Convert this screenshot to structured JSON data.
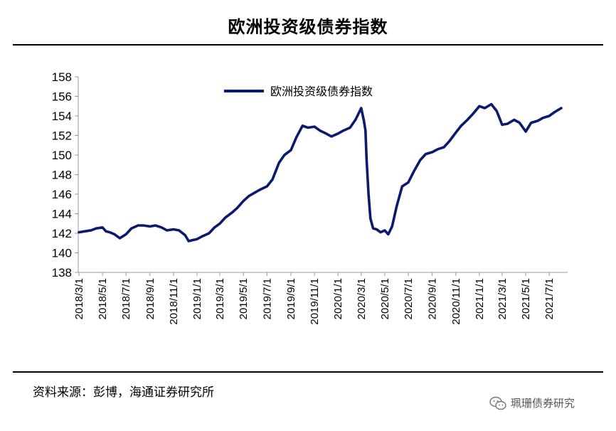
{
  "chart_data": {
    "type": "line",
    "title": "欧洲投资级债券指数",
    "xlabel": "",
    "ylabel": "",
    "ylim": [
      138,
      158
    ],
    "yticks": [
      138,
      140,
      142,
      144,
      146,
      148,
      150,
      152,
      154,
      156,
      158
    ],
    "grid": false,
    "legend_position": "top-center",
    "x_tick_labels": [
      "2018/3/1",
      "2018/5/1",
      "2018/7/1",
      "2018/9/1",
      "2018/11/1",
      "2019/1/1",
      "2019/3/1",
      "2019/5/1",
      "2019/7/1",
      "2019/9/1",
      "2019/11/1",
      "2020/1/1",
      "2020/3/1",
      "2020/5/1",
      "2020/7/1",
      "2020/9/1",
      "2020/11/1",
      "2021/1/1",
      "2021/3/1",
      "2021/5/1",
      "2021/7/1"
    ],
    "series": [
      {
        "name": "欧洲投资级债券指数",
        "color": "#0a1a6e",
        "points": [
          [
            "2018-03-01",
            142.1
          ],
          [
            "2018-03-15",
            142.2
          ],
          [
            "2018-04-01",
            142.3
          ],
          [
            "2018-04-15",
            142.5
          ],
          [
            "2018-05-01",
            142.6
          ],
          [
            "2018-05-10",
            142.2
          ],
          [
            "2018-05-20",
            142.1
          ],
          [
            "2018-06-01",
            141.9
          ],
          [
            "2018-06-15",
            141.5
          ],
          [
            "2018-07-01",
            141.9
          ],
          [
            "2018-07-15",
            142.5
          ],
          [
            "2018-08-01",
            142.8
          ],
          [
            "2018-08-15",
            142.8
          ],
          [
            "2018-09-01",
            142.7
          ],
          [
            "2018-09-15",
            142.8
          ],
          [
            "2018-10-01",
            142.6
          ],
          [
            "2018-10-15",
            142.3
          ],
          [
            "2018-11-01",
            142.4
          ],
          [
            "2018-11-15",
            142.3
          ],
          [
            "2018-12-01",
            141.8
          ],
          [
            "2018-12-10",
            141.2
          ],
          [
            "2018-12-20",
            141.3
          ],
          [
            "2019-01-01",
            141.4
          ],
          [
            "2019-01-15",
            141.7
          ],
          [
            "2019-02-01",
            142.0
          ],
          [
            "2019-02-15",
            142.6
          ],
          [
            "2019-03-01",
            143.0
          ],
          [
            "2019-03-15",
            143.6
          ],
          [
            "2019-04-01",
            144.1
          ],
          [
            "2019-04-15",
            144.6
          ],
          [
            "2019-05-01",
            145.3
          ],
          [
            "2019-05-15",
            145.8
          ],
          [
            "2019-06-01",
            146.2
          ],
          [
            "2019-06-15",
            146.5
          ],
          [
            "2019-07-01",
            146.8
          ],
          [
            "2019-07-15",
            147.5
          ],
          [
            "2019-08-01",
            149.2
          ],
          [
            "2019-08-15",
            150.0
          ],
          [
            "2019-09-01",
            150.5
          ],
          [
            "2019-09-15",
            151.8
          ],
          [
            "2019-10-01",
            153.0
          ],
          [
            "2019-10-15",
            152.8
          ],
          [
            "2019-11-01",
            152.9
          ],
          [
            "2019-11-15",
            152.5
          ],
          [
            "2019-12-01",
            152.2
          ],
          [
            "2019-12-15",
            151.9
          ],
          [
            "2020-01-01",
            152.2
          ],
          [
            "2020-01-15",
            152.5
          ],
          [
            "2020-02-01",
            152.8
          ],
          [
            "2020-02-15",
            153.6
          ],
          [
            "2020-03-01",
            154.8
          ],
          [
            "2020-03-08",
            153.5
          ],
          [
            "2020-03-12",
            152.5
          ],
          [
            "2020-03-15",
            149.5
          ],
          [
            "2020-03-20",
            146.0
          ],
          [
            "2020-03-25",
            143.5
          ],
          [
            "2020-04-01",
            142.5
          ],
          [
            "2020-04-10",
            142.4
          ],
          [
            "2020-04-20",
            142.1
          ],
          [
            "2020-05-01",
            142.3
          ],
          [
            "2020-05-10",
            141.9
          ],
          [
            "2020-05-20",
            142.7
          ],
          [
            "2020-06-01",
            144.8
          ],
          [
            "2020-06-15",
            146.8
          ],
          [
            "2020-07-01",
            147.2
          ],
          [
            "2020-07-15",
            148.3
          ],
          [
            "2020-08-01",
            149.5
          ],
          [
            "2020-08-15",
            150.1
          ],
          [
            "2020-09-01",
            150.3
          ],
          [
            "2020-09-15",
            150.6
          ],
          [
            "2020-10-01",
            150.8
          ],
          [
            "2020-10-15",
            151.4
          ],
          [
            "2020-11-01",
            152.3
          ],
          [
            "2020-11-15",
            153.0
          ],
          [
            "2020-12-01",
            153.6
          ],
          [
            "2020-12-15",
            154.2
          ],
          [
            "2021-01-01",
            155.0
          ],
          [
            "2021-01-15",
            154.8
          ],
          [
            "2021-02-01",
            155.2
          ],
          [
            "2021-02-15",
            154.5
          ],
          [
            "2021-03-01",
            153.1
          ],
          [
            "2021-03-15",
            153.2
          ],
          [
            "2021-04-01",
            153.6
          ],
          [
            "2021-04-15",
            153.3
          ],
          [
            "2021-05-01",
            152.4
          ],
          [
            "2021-05-15",
            153.3
          ],
          [
            "2021-06-01",
            153.5
          ],
          [
            "2021-06-15",
            153.8
          ],
          [
            "2021-07-01",
            154.0
          ],
          [
            "2021-07-15",
            154.4
          ],
          [
            "2021-08-01",
            154.8
          ]
        ]
      }
    ]
  },
  "header": {
    "title": "欧洲投资级债券指数"
  },
  "footer": {
    "source": "资料来源：彭博，海通证券研究所",
    "watermark": "珮珊债券研究"
  }
}
